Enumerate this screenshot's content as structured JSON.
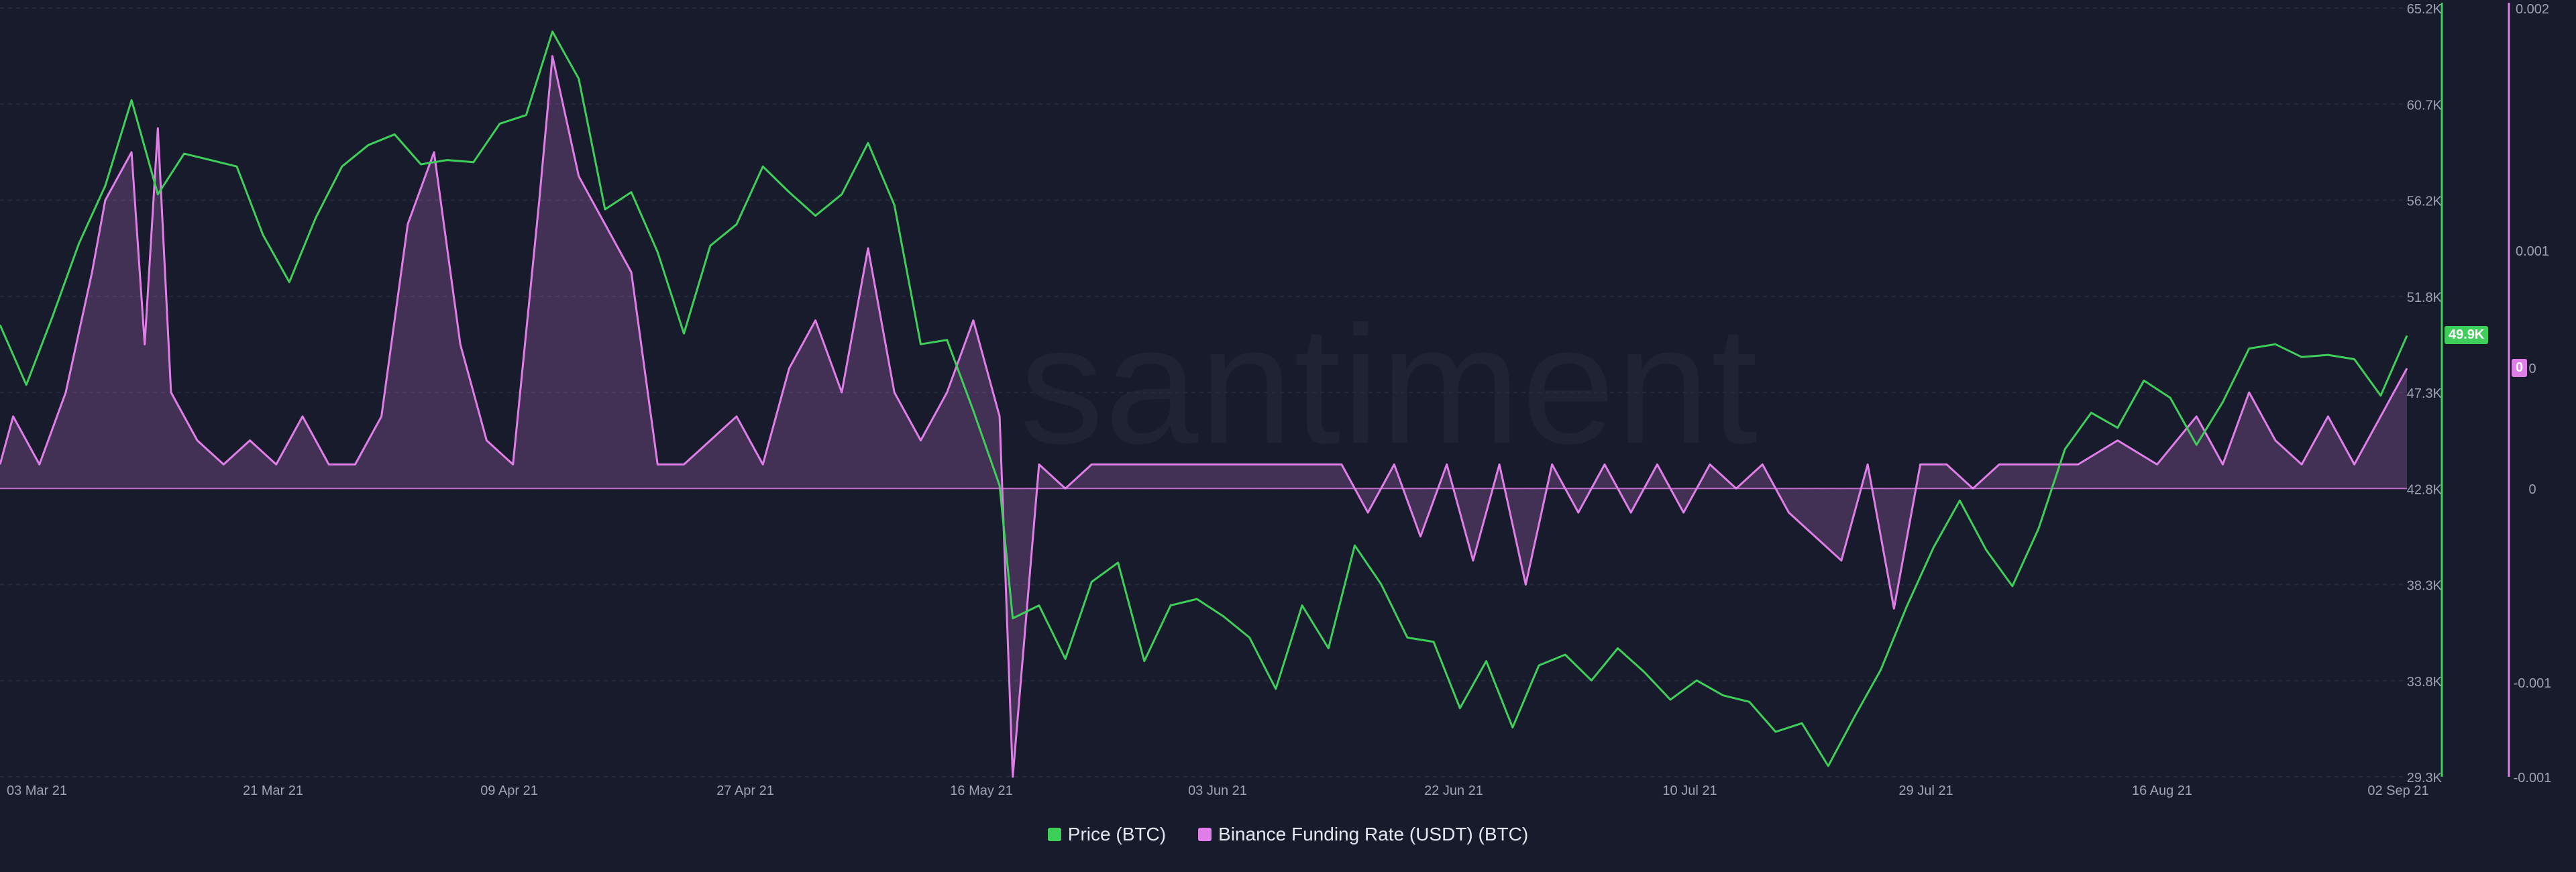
{
  "watermark": "santiment",
  "chart_data": {
    "type": "line",
    "x_ticks": [
      "03 Mar 21",
      "21 Mar 21",
      "09 Apr 21",
      "27 Apr 21",
      "16 May 21",
      "03 Jun 21",
      "22 Jun 21",
      "10 Jul 21",
      "29 Jul 21",
      "16 Aug 21",
      "02 Sep 21"
    ],
    "x_range": [
      "2021-03-03",
      "2021-09-02"
    ],
    "y_left_ticks": [],
    "y_price_ticks": [
      "65.2K",
      "60.7K",
      "56.2K",
      "51.8K",
      "47.3K",
      "42.8K",
      "38.3K",
      "33.8K",
      "29.3K"
    ],
    "y_price_range": [
      29300,
      65200
    ],
    "y_funding_ticks": [
      "0.002",
      "0.001",
      "0",
      "0",
      "-0.001",
      "-0.001"
    ],
    "y_funding_range": [
      -0.0012,
      0.002
    ],
    "current_price_label": "49.9K",
    "current_funding_label": "0",
    "grid": true,
    "legend_position": "bottom-center",
    "series": [
      {
        "name": "Price (BTC)",
        "axis": "price",
        "color": "#3ecf5a",
        "points": [
          [
            "2021-03-03",
            50400
          ],
          [
            "2021-03-05",
            47600
          ],
          [
            "2021-03-07",
            50800
          ],
          [
            "2021-03-09",
            54200
          ],
          [
            "2021-03-11",
            56900
          ],
          [
            "2021-03-13",
            60900
          ],
          [
            "2021-03-15",
            56500
          ],
          [
            "2021-03-17",
            58400
          ],
          [
            "2021-03-19",
            58100
          ],
          [
            "2021-03-21",
            57800
          ],
          [
            "2021-03-23",
            54600
          ],
          [
            "2021-03-25",
            52400
          ],
          [
            "2021-03-27",
            55400
          ],
          [
            "2021-03-29",
            57800
          ],
          [
            "2021-03-31",
            58800
          ],
          [
            "2021-04-02",
            59300
          ],
          [
            "2021-04-04",
            57900
          ],
          [
            "2021-04-06",
            58100
          ],
          [
            "2021-04-08",
            58000
          ],
          [
            "2021-04-10",
            59800
          ],
          [
            "2021-04-12",
            60200
          ],
          [
            "2021-04-14",
            64100
          ],
          [
            "2021-04-16",
            61900
          ],
          [
            "2021-04-18",
            55800
          ],
          [
            "2021-04-20",
            56600
          ],
          [
            "2021-04-22",
            53800
          ],
          [
            "2021-04-24",
            50000
          ],
          [
            "2021-04-26",
            54100
          ],
          [
            "2021-04-28",
            55100
          ],
          [
            "2021-04-30",
            57800
          ],
          [
            "2021-05-02",
            56600
          ],
          [
            "2021-05-04",
            55500
          ],
          [
            "2021-05-06",
            56500
          ],
          [
            "2021-05-08",
            58900
          ],
          [
            "2021-05-10",
            56000
          ],
          [
            "2021-05-12",
            49500
          ],
          [
            "2021-05-14",
            49700
          ],
          [
            "2021-05-16",
            46400
          ],
          [
            "2021-05-18",
            42900
          ],
          [
            "2021-05-19",
            36700
          ],
          [
            "2021-05-21",
            37300
          ],
          [
            "2021-05-23",
            34800
          ],
          [
            "2021-05-25",
            38400
          ],
          [
            "2021-05-27",
            39300
          ],
          [
            "2021-05-29",
            34700
          ],
          [
            "2021-05-31",
            37300
          ],
          [
            "2021-06-02",
            37600
          ],
          [
            "2021-06-04",
            36800
          ],
          [
            "2021-06-06",
            35800
          ],
          [
            "2021-06-08",
            33400
          ],
          [
            "2021-06-10",
            37300
          ],
          [
            "2021-06-12",
            35300
          ],
          [
            "2021-06-14",
            40100
          ],
          [
            "2021-06-16",
            38300
          ],
          [
            "2021-06-18",
            35800
          ],
          [
            "2021-06-20",
            35600
          ],
          [
            "2021-06-22",
            32500
          ],
          [
            "2021-06-24",
            34700
          ],
          [
            "2021-06-26",
            31600
          ],
          [
            "2021-06-28",
            34500
          ],
          [
            "2021-06-30",
            35000
          ],
          [
            "2021-07-02",
            33800
          ],
          [
            "2021-07-04",
            35300
          ],
          [
            "2021-07-06",
            34200
          ],
          [
            "2021-07-08",
            32900
          ],
          [
            "2021-07-10",
            33800
          ],
          [
            "2021-07-12",
            33100
          ],
          [
            "2021-07-14",
            32800
          ],
          [
            "2021-07-16",
            31400
          ],
          [
            "2021-07-18",
            31800
          ],
          [
            "2021-07-20",
            29800
          ],
          [
            "2021-07-22",
            32100
          ],
          [
            "2021-07-24",
            34300
          ],
          [
            "2021-07-26",
            37300
          ],
          [
            "2021-07-28",
            40000
          ],
          [
            "2021-07-30",
            42200
          ],
          [
            "2021-08-01",
            39900
          ],
          [
            "2021-08-03",
            38200
          ],
          [
            "2021-08-05",
            40900
          ],
          [
            "2021-08-07",
            44600
          ],
          [
            "2021-08-09",
            46300
          ],
          [
            "2021-08-11",
            45600
          ],
          [
            "2021-08-13",
            47800
          ],
          [
            "2021-08-15",
            47000
          ],
          [
            "2021-08-17",
            44800
          ],
          [
            "2021-08-19",
            46800
          ],
          [
            "2021-08-21",
            49300
          ],
          [
            "2021-08-23",
            49500
          ],
          [
            "2021-08-25",
            48900
          ],
          [
            "2021-08-27",
            49000
          ],
          [
            "2021-08-29",
            48800
          ],
          [
            "2021-08-31",
            47100
          ],
          [
            "2021-09-02",
            49900
          ]
        ]
      },
      {
        "name": "Binance Funding Rate (USDT) (BTC)",
        "axis": "funding",
        "color": "#e07ee8",
        "points": [
          [
            "2021-03-03",
            0.0001
          ],
          [
            "2021-03-04",
            0.0003
          ],
          [
            "2021-03-06",
            0.0001
          ],
          [
            "2021-03-08",
            0.0004
          ],
          [
            "2021-03-10",
            0.0009
          ],
          [
            "2021-03-11",
            0.0012
          ],
          [
            "2021-03-13",
            0.0014
          ],
          [
            "2021-03-14",
            0.0006
          ],
          [
            "2021-03-15",
            0.0015
          ],
          [
            "2021-03-16",
            0.0004
          ],
          [
            "2021-03-18",
            0.0002
          ],
          [
            "2021-03-20",
            0.0001
          ],
          [
            "2021-03-22",
            0.0002
          ],
          [
            "2021-03-24",
            0.0001
          ],
          [
            "2021-03-26",
            0.0003
          ],
          [
            "2021-03-28",
            0.0001
          ],
          [
            "2021-03-30",
            0.0001
          ],
          [
            "2021-04-01",
            0.0003
          ],
          [
            "2021-04-03",
            0.0011
          ],
          [
            "2021-04-05",
            0.0014
          ],
          [
            "2021-04-07",
            0.0006
          ],
          [
            "2021-04-09",
            0.0002
          ],
          [
            "2021-04-11",
            0.0001
          ],
          [
            "2021-04-13",
            0.0012
          ],
          [
            "2021-04-14",
            0.0018
          ],
          [
            "2021-04-16",
            0.0013
          ],
          [
            "2021-04-18",
            0.0011
          ],
          [
            "2021-04-20",
            0.0009
          ],
          [
            "2021-04-22",
            0.0001
          ],
          [
            "2021-04-24",
            0.0001
          ],
          [
            "2021-04-26",
            0.0002
          ],
          [
            "2021-04-28",
            0.0003
          ],
          [
            "2021-04-30",
            0.0001
          ],
          [
            "2021-05-02",
            0.0005
          ],
          [
            "2021-05-04",
            0.0007
          ],
          [
            "2021-05-06",
            0.0004
          ],
          [
            "2021-05-08",
            0.001
          ],
          [
            "2021-05-10",
            0.0004
          ],
          [
            "2021-05-12",
            0.0002
          ],
          [
            "2021-05-14",
            0.0004
          ],
          [
            "2021-05-16",
            0.0007
          ],
          [
            "2021-05-18",
            0.0003
          ],
          [
            "2021-05-19",
            -0.0012
          ],
          [
            "2021-05-21",
            0.0001
          ],
          [
            "2021-05-23",
            0.0
          ],
          [
            "2021-05-25",
            0.0001
          ],
          [
            "2021-05-27",
            0.0001
          ],
          [
            "2021-05-29",
            0.0001
          ],
          [
            "2021-06-01",
            0.0001
          ],
          [
            "2021-06-04",
            0.0001
          ],
          [
            "2021-06-07",
            0.0001
          ],
          [
            "2021-06-10",
            0.0001
          ],
          [
            "2021-06-13",
            0.0001
          ],
          [
            "2021-06-15",
            -0.0001
          ],
          [
            "2021-06-17",
            0.0001
          ],
          [
            "2021-06-19",
            -0.0002
          ],
          [
            "2021-06-21",
            0.0001
          ],
          [
            "2021-06-23",
            -0.0003
          ],
          [
            "2021-06-25",
            0.0001
          ],
          [
            "2021-06-27",
            -0.0004
          ],
          [
            "2021-06-29",
            0.0001
          ],
          [
            "2021-07-01",
            -0.0001
          ],
          [
            "2021-07-03",
            0.0001
          ],
          [
            "2021-07-05",
            -0.0001
          ],
          [
            "2021-07-07",
            0.0001
          ],
          [
            "2021-07-09",
            -0.0001
          ],
          [
            "2021-07-11",
            0.0001
          ],
          [
            "2021-07-13",
            0.0
          ],
          [
            "2021-07-15",
            0.0001
          ],
          [
            "2021-07-17",
            -0.0001
          ],
          [
            "2021-07-19",
            -0.0002
          ],
          [
            "2021-07-21",
            -0.0003
          ],
          [
            "2021-07-23",
            0.0001
          ],
          [
            "2021-07-25",
            -0.0005
          ],
          [
            "2021-07-27",
            0.0001
          ],
          [
            "2021-07-29",
            0.0001
          ],
          [
            "2021-07-31",
            0.0
          ],
          [
            "2021-08-02",
            0.0001
          ],
          [
            "2021-08-05",
            0.0001
          ],
          [
            "2021-08-08",
            0.0001
          ],
          [
            "2021-08-11",
            0.0002
          ],
          [
            "2021-08-14",
            0.0001
          ],
          [
            "2021-08-17",
            0.0003
          ],
          [
            "2021-08-19",
            0.0001
          ],
          [
            "2021-08-21",
            0.0004
          ],
          [
            "2021-08-23",
            0.0002
          ],
          [
            "2021-08-25",
            0.0001
          ],
          [
            "2021-08-27",
            0.0003
          ],
          [
            "2021-08-29",
            0.0001
          ],
          [
            "2021-08-31",
            0.0003
          ],
          [
            "2021-09-02",
            0.0005
          ]
        ]
      }
    ]
  }
}
